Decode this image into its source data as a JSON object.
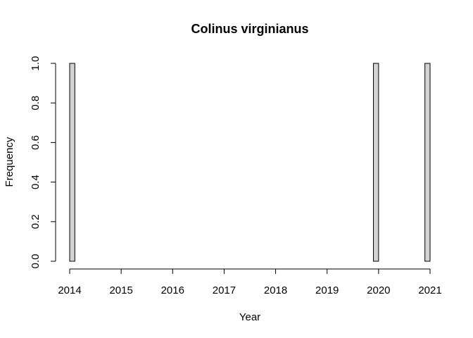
{
  "chart_data": {
    "type": "bar",
    "title": "Colinus virginianus",
    "xlabel": "Year",
    "ylabel": "Frequency",
    "xlim": [
      2014,
      2021
    ],
    "ylim": [
      0,
      1
    ],
    "x_ticks": [
      2014,
      2015,
      2016,
      2017,
      2018,
      2019,
      2020,
      2021
    ],
    "x_tick_labels": [
      "2014",
      "2015",
      "2016",
      "2017",
      "2018",
      "2019",
      "2020",
      "2021"
    ],
    "y_ticks": [
      0,
      0.2,
      0.4,
      0.6,
      0.8,
      1
    ],
    "y_tick_labels": [
      "0.0",
      "0.2",
      "0.4",
      "0.6",
      "0.8",
      "1.0"
    ],
    "bin_width": 0.1,
    "bins_start": 2014,
    "bins": [
      {
        "x0": 2014.0,
        "x1": 2014.1,
        "count": 1
      },
      {
        "x0": 2019.9,
        "x1": 2020.0,
        "count": 1
      },
      {
        "x0": 2020.9,
        "x1": 2021.0,
        "count": 1
      }
    ],
    "grid": false,
    "legend": "none",
    "colors": {
      "bar_fill": "#d3d3d3",
      "bar_stroke": "#000000"
    }
  }
}
